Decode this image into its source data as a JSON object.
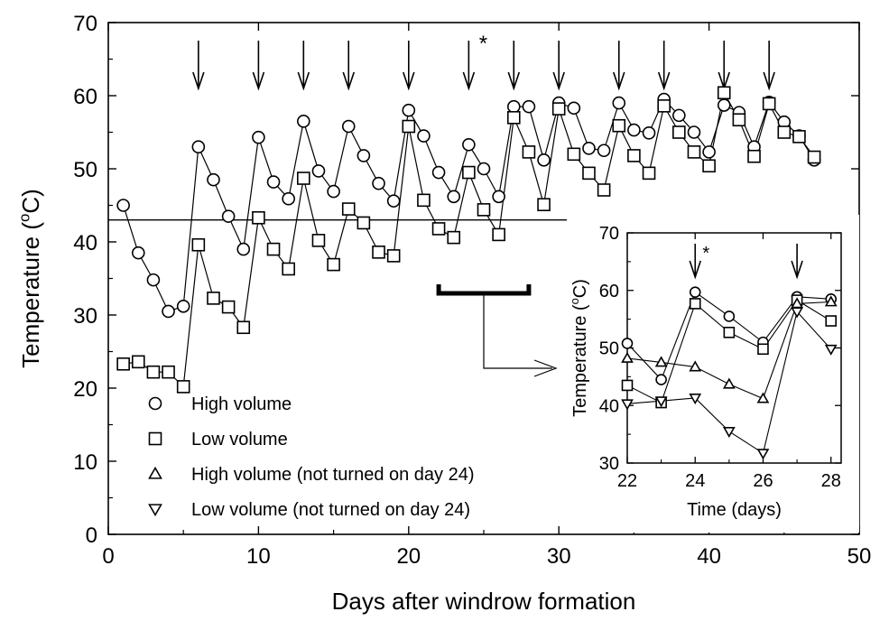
{
  "chart_data": [
    {
      "type": "line",
      "role": "main",
      "xlabel": "Days after windrow formation",
      "ylabel": "Temperature (°C)",
      "xlim": [
        0,
        50
      ],
      "ylim": [
        0,
        70
      ],
      "xticks": [
        0,
        10,
        20,
        30,
        40,
        50
      ],
      "yticks": [
        0,
        10,
        20,
        30,
        40,
        50,
        60,
        70
      ],
      "reference_line_y": 43,
      "turning_days": [
        6,
        10,
        13,
        16,
        20,
        24,
        27,
        30,
        34,
        37,
        41,
        44
      ],
      "asterisk_day": 24,
      "asterisk_label": "*",
      "legend_position": "bottom-left",
      "series": [
        {
          "name": "High volume",
          "marker": "circle",
          "x": [
            1,
            2,
            3,
            4,
            5,
            6,
            7,
            8,
            9,
            10,
            11,
            12,
            13,
            14,
            15,
            16,
            17,
            18,
            19,
            20,
            21,
            22,
            23,
            24,
            25,
            26,
            27,
            28,
            29,
            30,
            31,
            32,
            33,
            34,
            35,
            36,
            37,
            38,
            39,
            40,
            41,
            42,
            43,
            44,
            45,
            46,
            47
          ],
          "y": [
            45,
            38.5,
            34.8,
            30.5,
            31.2,
            53,
            48.5,
            43.5,
            39,
            54.3,
            48.2,
            45.9,
            56.5,
            49.7,
            46.9,
            55.8,
            51.8,
            48,
            45.6,
            58,
            54.5,
            49.5,
            46.2,
            53.3,
            50,
            46.2,
            58.5,
            58.5,
            51.2,
            59,
            58.3,
            52.8,
            52.5,
            59,
            55.3,
            54.9,
            59.5,
            57.3,
            55,
            52.3,
            58.7,
            57.7,
            53,
            59.1,
            56.4,
            54.5,
            51.2
          ]
        },
        {
          "name": "Low volume",
          "marker": "square",
          "x": [
            1,
            2,
            3,
            4,
            5,
            6,
            7,
            8,
            9,
            10,
            11,
            12,
            13,
            14,
            15,
            16,
            17,
            18,
            19,
            20,
            21,
            22,
            23,
            24,
            25,
            26,
            27,
            28,
            29,
            30,
            31,
            32,
            33,
            34,
            35,
            36,
            37,
            38,
            39,
            40,
            41,
            42,
            43,
            44,
            45,
            46,
            47
          ],
          "y": [
            23.3,
            23.6,
            22.2,
            22.2,
            20.2,
            39.6,
            32.3,
            31.1,
            28.3,
            43.3,
            39,
            36.3,
            48.7,
            40.2,
            36.9,
            44.5,
            42.6,
            38.6,
            38.1,
            55.8,
            45.7,
            41.8,
            40.6,
            49.5,
            44.4,
            41,
            57,
            52.3,
            45.1,
            58.2,
            52,
            49.4,
            47.1,
            55.9,
            51.8,
            49.4,
            58.6,
            55,
            52.3,
            50.4,
            60.4,
            56.7,
            51.7,
            58.9,
            55,
            54.4,
            51.6
          ]
        }
      ],
      "legend": [
        {
          "label": "High volume",
          "marker": "circle"
        },
        {
          "label": "Low volume",
          "marker": "square"
        },
        {
          "label": "High volume (not turned on day 24)",
          "marker": "triangle-up"
        },
        {
          "label": "Low volume (not turned on day 24)",
          "marker": "triangle-down"
        }
      ],
      "bracket_range": [
        22,
        28
      ]
    },
    {
      "type": "line",
      "role": "inset",
      "xlabel": "Time (days)",
      "ylabel": "Temperature (°C)",
      "xlim": [
        22,
        28.3
      ],
      "ylim": [
        30,
        70
      ],
      "xticks": [
        22,
        24,
        26,
        28
      ],
      "yticks": [
        30,
        40,
        50,
        60,
        70
      ],
      "turning_days": [
        24,
        27
      ],
      "asterisk_day": 24,
      "asterisk_label": "*",
      "series": [
        {
          "name": "High volume",
          "marker": "circle",
          "x": [
            22,
            23,
            24,
            25,
            26,
            27,
            28
          ],
          "y": [
            50.8,
            44.5,
            59.7,
            55.5,
            51,
            58.9,
            58.5
          ]
        },
        {
          "name": "Low volume",
          "marker": "square",
          "x": [
            22,
            23,
            24,
            25,
            26,
            27,
            28
          ],
          "y": [
            43.5,
            40.5,
            57.7,
            52.7,
            49.8,
            58.3,
            54.7
          ]
        },
        {
          "name": "High volume (not turned on day 24)",
          "marker": "triangle-up",
          "x": [
            22,
            23,
            24,
            25,
            26,
            27,
            28
          ],
          "y": [
            48.2,
            47.5,
            46.7,
            43.7,
            41.2,
            57.7,
            58
          ]
        },
        {
          "name": "Low volume (not turned on day 24)",
          "marker": "triangle-down",
          "x": [
            22,
            23,
            24,
            25,
            26,
            27,
            28
          ],
          "y": [
            40.3,
            40.8,
            41.3,
            35.5,
            31.7,
            56.3,
            49.8
          ]
        }
      ]
    }
  ]
}
